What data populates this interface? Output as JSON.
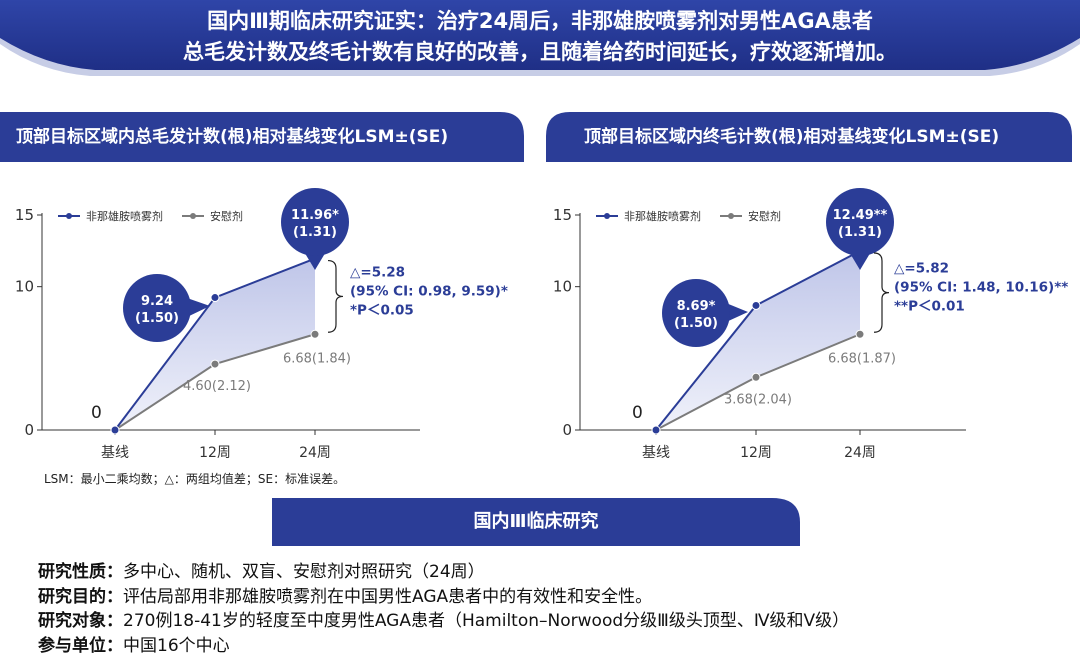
{
  "banner": {
    "line1": "国内Ⅲ期临床研究证实：治疗24周后，非那雄胺喷雾剂对男性AGA患者",
    "line2": "总毛发计数及终毛计数有良好的改善，且随着给药时间延长，疗效逐渐增加。"
  },
  "colors": {
    "navy": "#2b3d97",
    "gray": "#7b7b7b",
    "fill": "#dcdff2"
  },
  "chart_data": [
    {
      "type": "line",
      "title": "顶部目标区域内总毛发计数(根)相对基线变化LSM±(SE)",
      "categories": [
        "基线",
        "12周",
        "24周"
      ],
      "y_ticks": [
        "0",
        "10",
        "15"
      ],
      "ylim": [
        0,
        15
      ],
      "series": [
        {
          "name": "非那雄胺喷雾剂",
          "values": [
            0,
            9.24,
            11.96
          ],
          "labels": [
            "",
            "9.24\n(1.50)",
            "11.96*\n(1.31)"
          ]
        },
        {
          "name": "安慰剂",
          "values": [
            0,
            4.6,
            6.68
          ],
          "labels": [
            "",
            "4.60(2.12)",
            "6.68(1.84)"
          ]
        }
      ],
      "zero_label": "0",
      "annotation": [
        "△=5.28",
        "(95% CI: 0.98, 9.59)*",
        "*P＜0.05"
      ]
    },
    {
      "type": "line",
      "title": "顶部目标区域内终毛计数(根)相对基线变化LSM±(SE)",
      "categories": [
        "基线",
        "12周",
        "24周"
      ],
      "y_ticks": [
        "0",
        "10",
        "15"
      ],
      "ylim": [
        0,
        15
      ],
      "series": [
        {
          "name": "非那雄胺喷雾剂",
          "values": [
            0,
            8.69,
            12.49
          ],
          "labels": [
            "",
            "8.69*\n(1.50)",
            "12.49**\n(1.31)"
          ]
        },
        {
          "name": "安慰剂",
          "values": [
            0,
            3.68,
            6.68
          ],
          "labels": [
            "",
            "3.68(2.04)",
            "6.68(1.87)"
          ]
        }
      ],
      "zero_label": "0",
      "annotation": [
        "△=5.82",
        "(95% CI: 1.48, 10.16)**",
        "**P＜0.01"
      ]
    }
  ],
  "footnote": "LSM：最小二乘均数；△：两组均值差；SE：标准误差。",
  "section_title": "国内Ⅲ临床研究",
  "study_info": [
    {
      "label": "研究性质：",
      "value": "多中心、随机、双盲、安慰剂对照研究（24周）"
    },
    {
      "label": "研究目的：",
      "value": "评估局部用非那雄胺喷雾剂在中国男性AGA患者中的有效性和安全性。"
    },
    {
      "label": "研究对象：",
      "value": "270例18-41岁的轻度至中度男性AGA患者（Hamilton–Norwood分级Ⅲ级头顶型、Ⅳ级和Ⅴ级）"
    },
    {
      "label": "参与单位：",
      "value": "中国16个中心"
    }
  ]
}
